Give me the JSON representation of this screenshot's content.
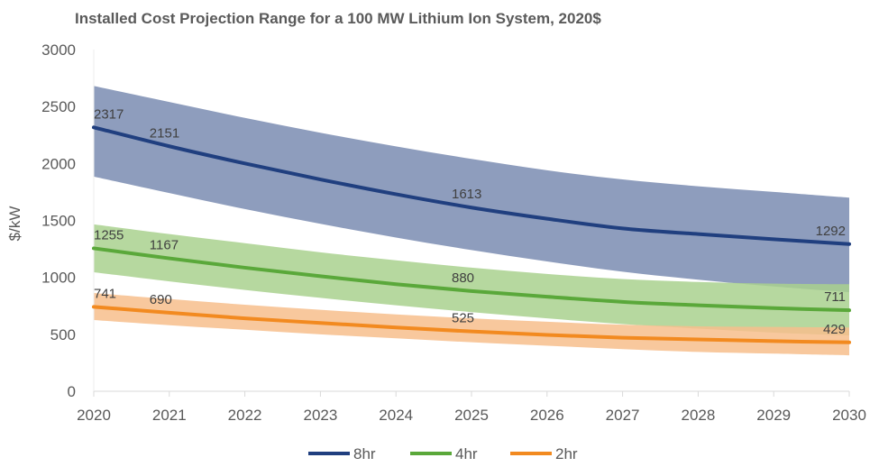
{
  "chart_data": {
    "type": "line",
    "title": "Installed Cost Projection Range for a 100 MW Lithium Ion System, 2020$",
    "xlabel": "",
    "ylabel": "$/kW",
    "xlim": [
      2020,
      2030
    ],
    "ylim": [
      0,
      3000
    ],
    "x_ticks": [
      "2020",
      "2021",
      "2022",
      "2023",
      "2024",
      "2025",
      "2026",
      "2027",
      "2028",
      "2029",
      "2030"
    ],
    "y_ticks": [
      "0",
      "500",
      "1000",
      "1500",
      "2000",
      "2500",
      "3000"
    ],
    "grid": false,
    "legend_position": "bottom",
    "x": [
      2020,
      2021,
      2022,
      2023,
      2024,
      2025,
      2026,
      2027,
      2028,
      2029,
      2030
    ],
    "series": [
      {
        "name": "8hr",
        "color": "#203f7f",
        "band_color": "#8e9dbd",
        "values": [
          2317,
          2151,
          2000,
          1860,
          1730,
          1613,
          1515,
          1430,
          1380,
          1335,
          1292
        ],
        "band_upper": [
          2680,
          2540,
          2400,
          2270,
          2150,
          2040,
          1940,
          1860,
          1800,
          1750,
          1700
        ],
        "band_lower": [
          1885,
          1740,
          1600,
          1470,
          1350,
          1240,
          1140,
          1050,
          980,
          920,
          870
        ],
        "labels": [
          {
            "x": 2020,
            "text": "2317"
          },
          {
            "x": 2021,
            "text": "2151"
          },
          {
            "x": 2025,
            "text": "1613"
          },
          {
            "x": 2030,
            "text": "1292"
          }
        ]
      },
      {
        "name": "4hr",
        "color": "#5aa83a",
        "band_color": "#a9d18e",
        "values": [
          1255,
          1167,
          1085,
          1010,
          940,
          880,
          830,
          785,
          755,
          730,
          711
        ],
        "band_upper": [
          1465,
          1380,
          1300,
          1220,
          1150,
          1085,
          1030,
          985,
          960,
          945,
          940
        ],
        "band_lower": [
          1045,
          965,
          890,
          820,
          755,
          695,
          640,
          590,
          550,
          515,
          490
        ],
        "labels": [
          {
            "x": 2020,
            "text": "1255"
          },
          {
            "x": 2021,
            "text": "1167"
          },
          {
            "x": 2025,
            "text": "880"
          },
          {
            "x": 2030,
            "text": "711"
          }
        ]
      },
      {
        "name": "2hr",
        "color": "#f28a20",
        "band_color": "#f7be8c",
        "values": [
          741,
          690,
          640,
          600,
          560,
          525,
          495,
          470,
          455,
          440,
          429
        ],
        "band_upper": [
          863,
          810,
          760,
          715,
          675,
          640,
          610,
          585,
          570,
          565,
          560
        ],
        "band_lower": [
          625,
          580,
          540,
          500,
          465,
          430,
          400,
          370,
          345,
          330,
          316
        ],
        "labels": [
          {
            "x": 2020,
            "text": "741"
          },
          {
            "x": 2021,
            "text": "690"
          },
          {
            "x": 2025,
            "text": "525"
          },
          {
            "x": 2030,
            "text": "429"
          }
        ]
      }
    ]
  }
}
